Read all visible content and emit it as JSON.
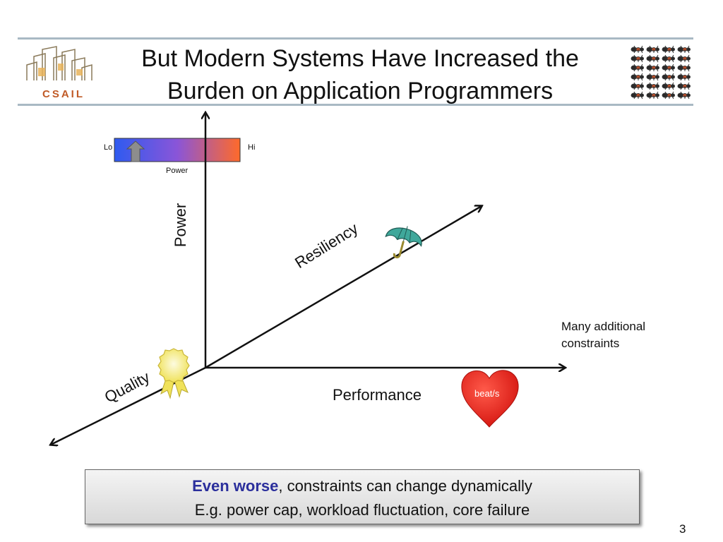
{
  "slide": {
    "title_line1": "But Modern Systems Have Increased the",
    "title_line2": "Burden on Application Programmers",
    "page_number": "3",
    "logo_text": "CSAIL"
  },
  "legend": {
    "low": "Lo",
    "high": "Hi",
    "caption": "Power",
    "gradient_from": "#2e5bf0",
    "gradient_to": "#ff6a2a"
  },
  "axes": {
    "vertical": "Power",
    "horizontal": "Performance",
    "diagonal_up": "Resiliency",
    "diagonal_down": "Quality"
  },
  "heart_label": "beat/s",
  "side_note": "Many additional constraints",
  "callout": {
    "emphasis": "Even worse",
    "rest_line1": ", constraints can change dynamically",
    "line2": "E.g. power cap, workload fluctuation, core failure"
  },
  "colors": {
    "rule": "#a9b9c4",
    "emphasis": "#2b2f9c",
    "heart": "#e8211c",
    "umbrella": "#3fa89b",
    "ribbon": "#f3e96a"
  },
  "icons": [
    "csail-logo-icon",
    "ants-logo-icon",
    "arrow-up-icon",
    "umbrella-icon",
    "ribbon-award-icon",
    "heart-icon"
  ]
}
